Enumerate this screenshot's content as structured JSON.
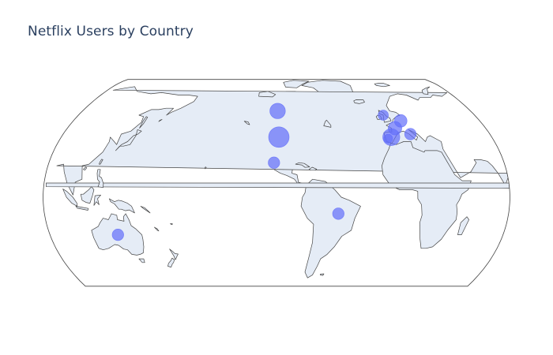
{
  "title": "Netflix Users by Country",
  "colors": {
    "land": "#e5ecf6",
    "border": "#444444",
    "marker": "#636efa",
    "title": "#2a3f5f"
  },
  "chart_data": {
    "type": "scatter_geo",
    "projection": "natural earth",
    "center_lon": -100,
    "title": "Netflix Users by Country",
    "points": [
      {
        "lat": 58,
        "lon": -99,
        "users": 9
      },
      {
        "lat": 40,
        "lon": -98,
        "users": 16
      },
      {
        "lat": 23,
        "lon": -102,
        "users": 5
      },
      {
        "lat": -11,
        "lon": -52,
        "users": 5
      },
      {
        "lat": -25,
        "lon": 134,
        "users": 5
      },
      {
        "lat": 55,
        "lon": -3,
        "users": 4
      },
      {
        "lat": 51,
        "lon": 10,
        "users": 6
      },
      {
        "lat": 46,
        "lon": 2,
        "users": 7
      },
      {
        "lat": 42,
        "lon": 13,
        "users": 5
      },
      {
        "lat": 40,
        "lon": -4,
        "users": 11
      },
      {
        "lat": 39,
        "lon": -7,
        "users": 3
      }
    ]
  }
}
